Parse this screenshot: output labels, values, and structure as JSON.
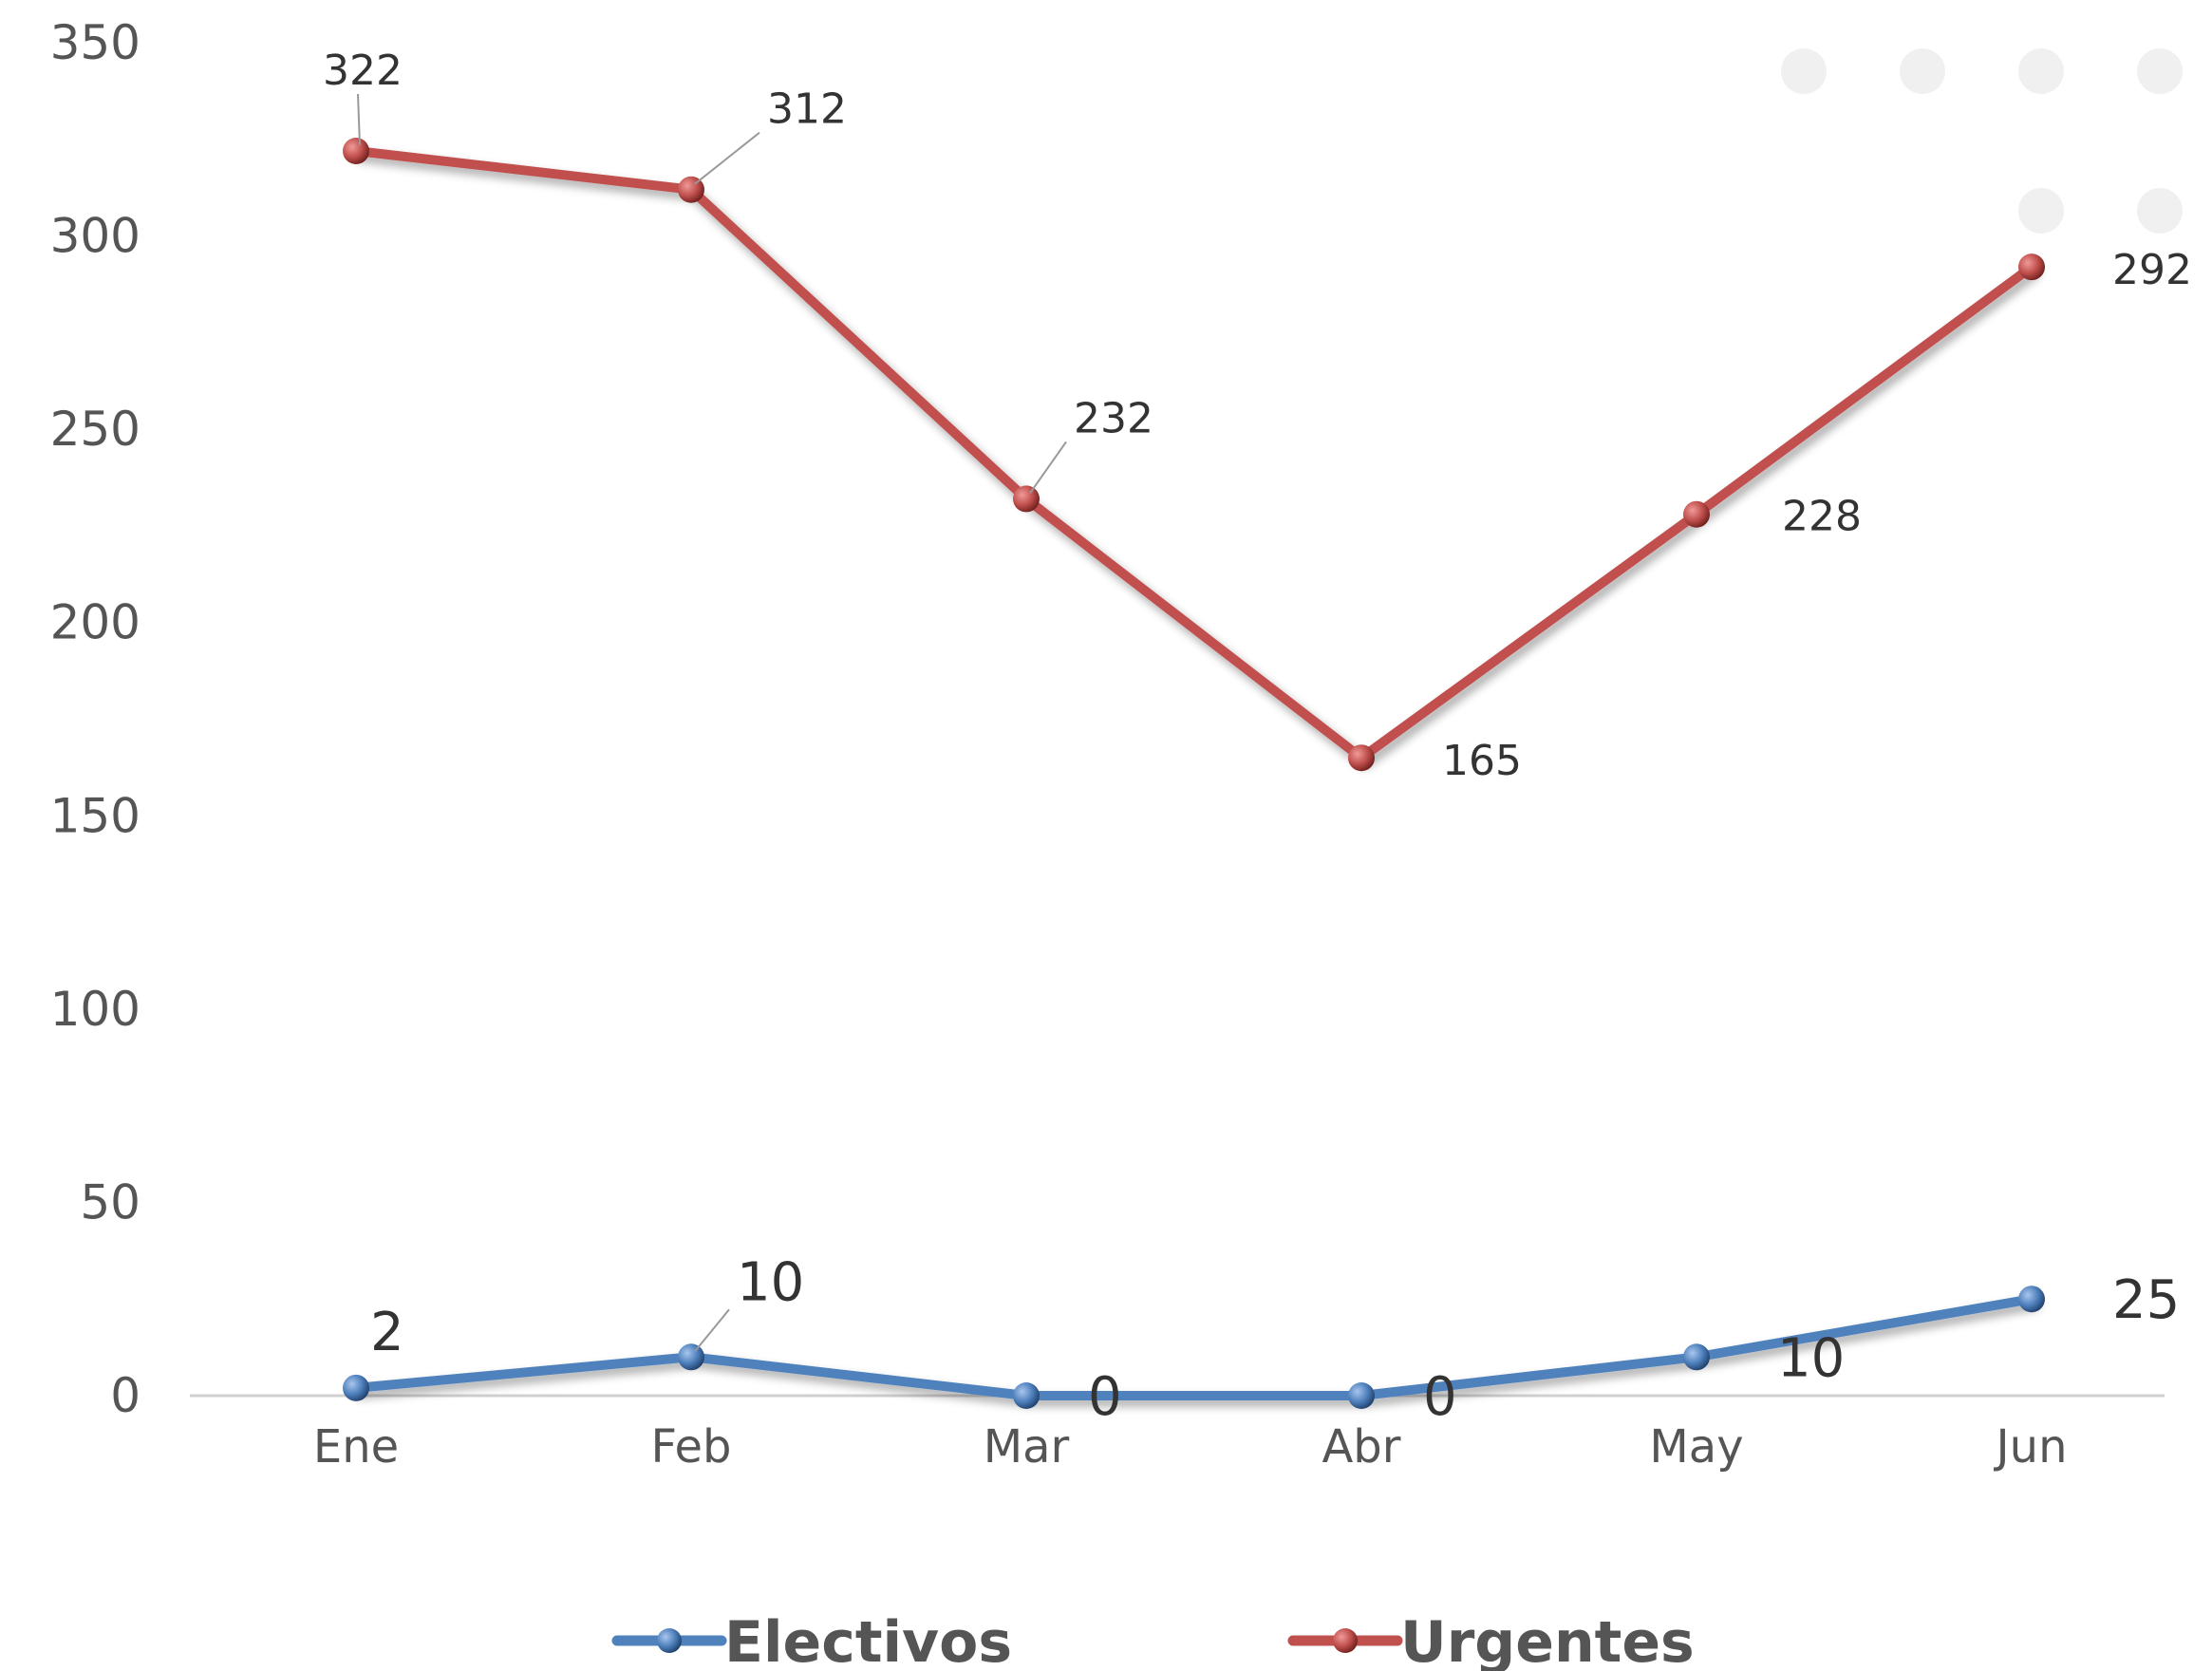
{
  "chart_data": {
    "type": "line",
    "categories": [
      "Ene",
      "Feb",
      "Mar",
      "Abr",
      "May",
      "Jun"
    ],
    "series": [
      {
        "name": "Electivos",
        "values": [
          2,
          10,
          0,
          0,
          10,
          25
        ],
        "color": "#4f81bd"
      },
      {
        "name": "Urgentes",
        "values": [
          322,
          312,
          232,
          165,
          228,
          292
        ],
        "color": "#c0504d"
      }
    ],
    "yticks": [
      "0",
      "50",
      "100",
      "150",
      "200",
      "250",
      "300",
      "350"
    ],
    "ylim": [
      0,
      350
    ],
    "grid": false,
    "legend": "bottom",
    "title": "",
    "xlabel": "",
    "ylabel": ""
  }
}
